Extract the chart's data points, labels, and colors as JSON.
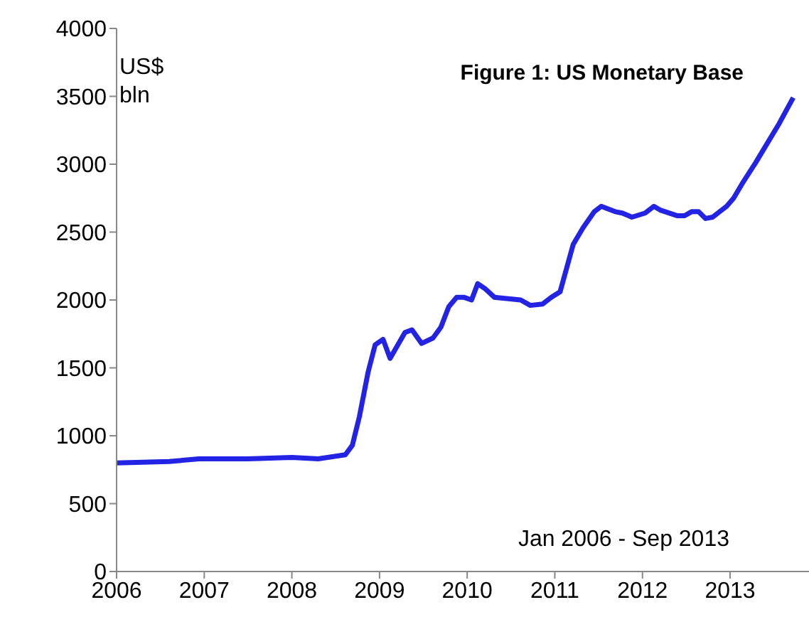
{
  "chart_data": {
    "type": "line",
    "title": "Figure 1: US Monetary Base",
    "ylabel": "US$ bln",
    "annotations": [
      "Jan 2006 - Sep 2013"
    ],
    "xlim": [
      2006,
      2013.9
    ],
    "xticks": [
      2006,
      2007,
      2008,
      2009,
      2010,
      2011,
      2012,
      2013
    ],
    "ylim": [
      0,
      4000
    ],
    "yticks": [
      0,
      500,
      1000,
      1500,
      2000,
      2500,
      3000,
      3500,
      4000
    ],
    "marker": "none",
    "line_style": "solid",
    "series": [
      {
        "color": "#2323e6",
        "x": [
          2006.0,
          2006.6,
          2006.94,
          2007.5,
          2008.0,
          2008.3,
          2008.61,
          2008.69,
          2008.77,
          2008.87,
          2008.95,
          2009.04,
          2009.12,
          2009.29,
          2009.37,
          2009.48,
          2009.61,
          2009.7,
          2009.79,
          2009.88,
          2009.96,
          2010.05,
          2010.12,
          2010.21,
          2010.31,
          2010.61,
          2010.72,
          2010.86,
          2010.96,
          2011.06,
          2011.21,
          2011.32,
          2011.45,
          2011.53,
          2011.69,
          2011.77,
          2011.88,
          2012.03,
          2012.13,
          2012.21,
          2012.4,
          2012.48,
          2012.56,
          2012.64,
          2012.72,
          2012.8,
          2012.96,
          2013.04,
          2013.15,
          2013.29,
          2013.42,
          2013.56,
          2013.72
        ],
        "values": [
          800,
          810,
          830,
          830,
          840,
          830,
          860,
          930,
          1140,
          1470,
          1670,
          1710,
          1570,
          1760,
          1780,
          1680,
          1720,
          1800,
          1950,
          2020,
          2020,
          2000,
          2120,
          2080,
          2020,
          2000,
          1960,
          1970,
          2020,
          2060,
          2410,
          2530,
          2650,
          2690,
          2650,
          2640,
          2610,
          2640,
          2690,
          2660,
          2620,
          2620,
          2650,
          2650,
          2600,
          2610,
          2690,
          2750,
          2870,
          3010,
          3150,
          3300,
          3490
        ]
      }
    ]
  }
}
